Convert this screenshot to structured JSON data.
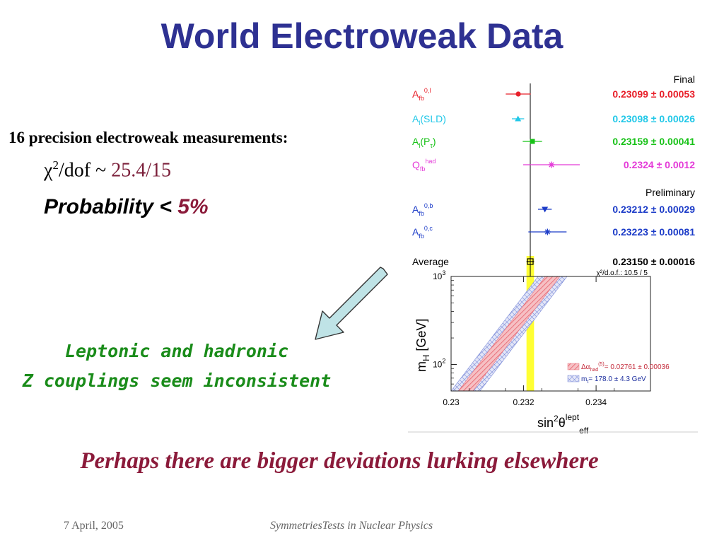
{
  "title": "World Electroweak Data",
  "measurements_label": "16 precision electroweak measurements:",
  "chi2": {
    "prefix": "χ",
    "sup": "2",
    "rest": "/dof ~ ",
    "value": "25.4/15"
  },
  "probability": {
    "label": "Probability < ",
    "value": "5%"
  },
  "callout": {
    "line1": "Leptonic and hadronic",
    "line2": "Z couplings seem inconsistent"
  },
  "conclusion": "Perhaps there are bigger deviations lurking elsewhere",
  "footer": {
    "date": "7 April, 2005",
    "name": "SymmetriesTests in Nuclear Physics"
  },
  "colors": {
    "title": "#2e3192",
    "callout": "#1a8c1a",
    "accent": "#8b1a3a",
    "arrow": "#bfe3e6",
    "average_band": "#ffff33"
  },
  "chart_data": [
    {
      "type": "scatter",
      "section_labels": [
        "Final",
        "Preliminary"
      ],
      "x_axis": {
        "lim": [
          0.2285,
          0.2345
        ]
      },
      "measurements": [
        {
          "label": "A_fb^{0,l}",
          "label_main": "A",
          "label_sub": "fb",
          "label_sup": "0,l",
          "value": 0.23099,
          "error": 0.00053,
          "text": "0.23099 ± 0.00053",
          "color": "#e8202a",
          "marker": "circle",
          "group": "Final"
        },
        {
          "label": "A_l(SLD)",
          "label_main": "A",
          "label_sub": "l",
          "label_tail": "(SLD)",
          "value": 0.23098,
          "error": 0.00026,
          "text": "0.23098 ± 0.00026",
          "color": "#22c8e8",
          "marker": "triangle",
          "group": "Final"
        },
        {
          "label": "A_l(P_τ)",
          "label_main": "A",
          "label_sub": "l",
          "label_tail": "(P",
          "label_tail_sub": "τ",
          "label_end": ")",
          "value": 0.23159,
          "error": 0.00041,
          "text": "0.23159 ± 0.00041",
          "color": "#18c218",
          "marker": "square",
          "group": "Final"
        },
        {
          "label": "Q_fb^{had}",
          "label_main": "Q",
          "label_sub": "fb",
          "label_sup": "had",
          "value": 0.2324,
          "error": 0.0012,
          "text": "0.2324 ± 0.0012",
          "color": "#e43ad8",
          "marker": "star",
          "group": "Final"
        },
        {
          "label": "A_fb^{0,b}",
          "label_main": "A",
          "label_sub": "fb",
          "label_sup": "0,b",
          "value": 0.23212,
          "error": 0.00029,
          "text": "0.23212 ± 0.00029",
          "color": "#1c3cc8",
          "marker": "triangle-down",
          "group": "Preliminary"
        },
        {
          "label": "A_fb^{0,c}",
          "label_main": "A",
          "label_sub": "fb",
          "label_sup": "0,c",
          "value": 0.23223,
          "error": 0.00081,
          "text": "0.23223 ± 0.00081",
          "color": "#1c3cc8",
          "marker": "star",
          "group": "Preliminary"
        }
      ],
      "average": {
        "label": "Average",
        "value": 0.2315,
        "error": 0.00016,
        "text": "0.23150 ± 0.00016",
        "color": "#000000"
      },
      "chi2_annotation": "χ²/d.o.f.: 10.5 / 5"
    },
    {
      "type": "area",
      "x_axis": {
        "label_main": "sin",
        "label_sup1": "2",
        "label_theta": "θ",
        "label_sup2": "lept",
        "label_sub": "eff",
        "lim": [
          0.23,
          0.2355
        ],
        "ticks": [
          0.23,
          0.232,
          0.234
        ],
        "tick_labels": [
          "0.23",
          "0.232",
          "0.234"
        ]
      },
      "y_axis": {
        "label_main": "m",
        "label_sub": "H",
        "label_unit": "[GeV]",
        "scale": "log",
        "lim": [
          50,
          1000
        ],
        "ticks": [
          100,
          1000
        ],
        "tick_bases": [
          "10",
          "10"
        ],
        "tick_exps": [
          "2",
          "3"
        ]
      },
      "bands": [
        {
          "name": "Δα_had^(5) = 0.02761 ± 0.00036",
          "legend_prefix": "Δα",
          "legend_sub": "had",
          "legend_sup": "(5)",
          "legend_rest": "= 0.02761 ± 0.00036",
          "color": "#e8707a",
          "lower_edge": [
            [
              0.2302,
              50
            ],
            [
              0.2326,
              1000
            ]
          ],
          "upper_edge": [
            [
              0.2306,
              50
            ],
            [
              0.233,
              1000
            ]
          ]
        },
        {
          "name": "m_t = 178.0 ± 4.3 GeV",
          "legend_prefix": "m",
          "legend_sub": "t",
          "legend_rest": "= 178.0 ± 4.3 GeV",
          "color": "#7a8ad8",
          "lower_edge": [
            [
              0.23,
              50
            ],
            [
              0.2324,
              1000
            ]
          ],
          "upper_edge": [
            [
              0.2308,
              50
            ],
            [
              0.2332,
              1000
            ]
          ]
        }
      ],
      "average_band": [
        0.23134,
        0.23166
      ]
    }
  ]
}
